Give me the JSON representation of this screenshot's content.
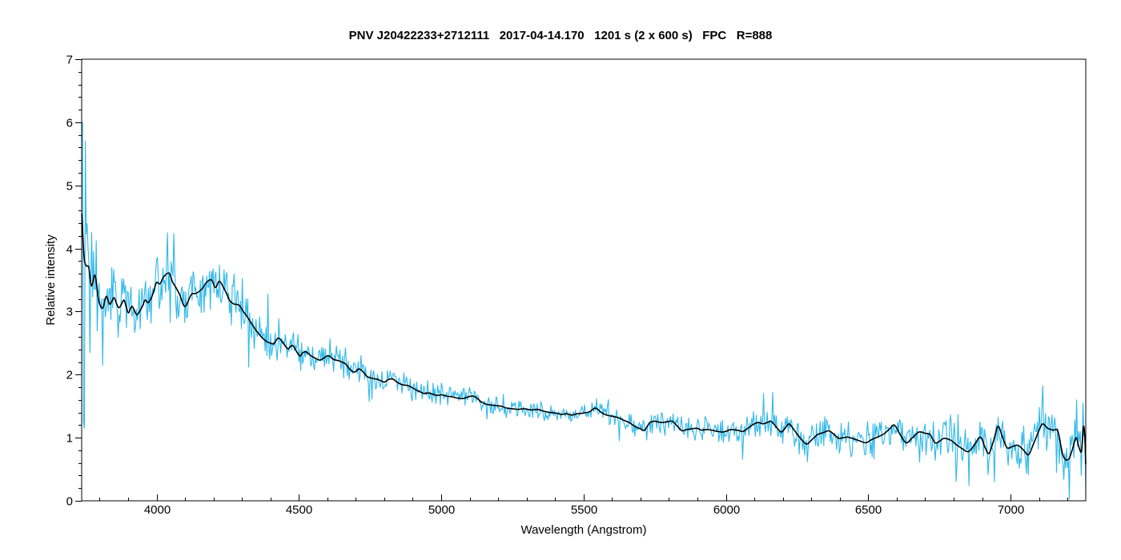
{
  "page": {
    "background": "#ffffff"
  },
  "chart_data": {
    "type": "line",
    "title": "PNV J20422233+2712111   2017-04-14.170   1201 s (2 x 600 s)   FPC   R=888",
    "xlabel": "Wavelength (Angstrom)",
    "ylabel": "Relative intensity",
    "xlim": [
      3737,
      7264
    ],
    "ylim": [
      0,
      7
    ],
    "x_major_ticks": [
      4000,
      4500,
      5000,
      5500,
      6000,
      6500,
      7000
    ],
    "x_minor_step": 100,
    "y_major_ticks": [
      0,
      1,
      2,
      3,
      4,
      5,
      6,
      7
    ],
    "y_minor_step": 0.2,
    "grid": false,
    "legend": "none",
    "colors": {
      "raw": "#2fb8ec",
      "smoothed": "#000000",
      "axis": "#000000",
      "background": "#ffffff"
    },
    "noise_seed": 20170414,
    "raw_sample_count": 1100,
    "noise_envelope": [
      [
        3737,
        1.3
      ],
      [
        3745,
        1.05
      ],
      [
        3755,
        0.75
      ],
      [
        3770,
        0.6
      ],
      [
        3800,
        0.55
      ],
      [
        3850,
        0.5
      ],
      [
        3900,
        0.48
      ],
      [
        3950,
        0.45
      ],
      [
        4000,
        0.42
      ],
      [
        4100,
        0.42
      ],
      [
        4200,
        0.42
      ],
      [
        4300,
        0.38
      ],
      [
        4400,
        0.3
      ],
      [
        4500,
        0.26
      ],
      [
        4600,
        0.24
      ],
      [
        4700,
        0.2
      ],
      [
        4800,
        0.18
      ],
      [
        4900,
        0.18
      ],
      [
        5000,
        0.16
      ],
      [
        5100,
        0.16
      ],
      [
        5200,
        0.14
      ],
      [
        5300,
        0.14
      ],
      [
        5400,
        0.13
      ],
      [
        5500,
        0.13
      ],
      [
        5600,
        0.16
      ],
      [
        5700,
        0.18
      ],
      [
        5800,
        0.2
      ],
      [
        5900,
        0.2
      ],
      [
        6000,
        0.2
      ],
      [
        6100,
        0.22
      ],
      [
        6200,
        0.24
      ],
      [
        6300,
        0.24
      ],
      [
        6400,
        0.26
      ],
      [
        6500,
        0.28
      ],
      [
        6600,
        0.28
      ],
      [
        6700,
        0.3
      ],
      [
        6800,
        0.32
      ],
      [
        6900,
        0.33
      ],
      [
        7000,
        0.33
      ],
      [
        7100,
        0.36
      ],
      [
        7150,
        0.38
      ],
      [
        7200,
        0.4
      ],
      [
        7230,
        0.45
      ],
      [
        7250,
        0.4
      ],
      [
        7264,
        0.35
      ]
    ],
    "spikes": [
      [
        3739,
        6.0
      ],
      [
        3742,
        1.25
      ],
      [
        3748,
        1.15
      ],
      [
        3751,
        5.7
      ],
      [
        3765,
        2.35
      ],
      [
        3789,
        4.12
      ],
      [
        3810,
        2.15
      ],
      [
        4040,
        4.25
      ],
      [
        4325,
        2.12
      ],
      [
        4390,
        3.28
      ],
      [
        5545,
        1.62
      ],
      [
        6165,
        1.72
      ],
      [
        6285,
        0.62
      ],
      [
        6942,
        0.3
      ],
      [
        7112,
        1.82
      ],
      [
        7160,
        0.45
      ],
      [
        7232,
        1.6
      ],
      [
        7253,
        1.55
      ],
      [
        7263,
        0.14
      ]
    ],
    "series": [
      {
        "name": "raw spectrum",
        "color": "#2fb8ec",
        "derived": "smoothed points + noise_envelope + spikes"
      },
      {
        "name": "smoothed spectrum",
        "color": "#000000",
        "points": [
          [
            3737,
            4.55
          ],
          [
            3740,
            4.3
          ],
          [
            3744,
            3.95
          ],
          [
            3748,
            3.78
          ],
          [
            3754,
            3.72
          ],
          [
            3762,
            3.7
          ],
          [
            3770,
            3.42
          ],
          [
            3776,
            3.46
          ],
          [
            3782,
            3.58
          ],
          [
            3788,
            3.48
          ],
          [
            3795,
            3.22
          ],
          [
            3802,
            3.1
          ],
          [
            3812,
            3.06
          ],
          [
            3823,
            3.24
          ],
          [
            3835,
            3.12
          ],
          [
            3843,
            3.16
          ],
          [
            3851,
            3.22
          ],
          [
            3860,
            3.12
          ],
          [
            3868,
            3.06
          ],
          [
            3877,
            3.12
          ],
          [
            3886,
            3.18
          ],
          [
            3895,
            3.05
          ],
          [
            3902,
            2.98
          ],
          [
            3912,
            3.08
          ],
          [
            3920,
            3.04
          ],
          [
            3930,
            2.95
          ],
          [
            3940,
            3.0
          ],
          [
            3950,
            3.08
          ],
          [
            3960,
            3.18
          ],
          [
            3970,
            3.14
          ],
          [
            3980,
            3.2
          ],
          [
            3990,
            3.32
          ],
          [
            4000,
            3.46
          ],
          [
            4012,
            3.44
          ],
          [
            4025,
            3.55
          ],
          [
            4044,
            3.61
          ],
          [
            4056,
            3.47
          ],
          [
            4067,
            3.39
          ],
          [
            4082,
            3.26
          ],
          [
            4100,
            3.08
          ],
          [
            4122,
            3.27
          ],
          [
            4140,
            3.29
          ],
          [
            4160,
            3.36
          ],
          [
            4175,
            3.46
          ],
          [
            4193,
            3.5
          ],
          [
            4207,
            3.38
          ],
          [
            4221,
            3.48
          ],
          [
            4240,
            3.34
          ],
          [
            4258,
            3.17
          ],
          [
            4272,
            3.12
          ],
          [
            4290,
            3.1
          ],
          [
            4305,
            3.0
          ],
          [
            4318,
            2.92
          ],
          [
            4332,
            2.82
          ],
          [
            4350,
            2.7
          ],
          [
            4368,
            2.6
          ],
          [
            4385,
            2.53
          ],
          [
            4400,
            2.5
          ],
          [
            4412,
            2.49
          ],
          [
            4428,
            2.58
          ],
          [
            4448,
            2.48
          ],
          [
            4462,
            2.41
          ],
          [
            4478,
            2.46
          ],
          [
            4502,
            2.3
          ],
          [
            4514,
            2.35
          ],
          [
            4526,
            2.36
          ],
          [
            4542,
            2.3
          ],
          [
            4558,
            2.26
          ],
          [
            4574,
            2.23
          ],
          [
            4590,
            2.27
          ],
          [
            4604,
            2.3
          ],
          [
            4622,
            2.24
          ],
          [
            4640,
            2.22
          ],
          [
            4650,
            2.2
          ],
          [
            4664,
            2.17
          ],
          [
            4680,
            2.08
          ],
          [
            4695,
            2.04
          ],
          [
            4710,
            2.09
          ],
          [
            4722,
            2.06
          ],
          [
            4740,
            1.97
          ],
          [
            4760,
            1.94
          ],
          [
            4780,
            1.92
          ],
          [
            4800,
            1.88
          ],
          [
            4813,
            1.92
          ],
          [
            4830,
            1.93
          ],
          [
            4845,
            1.88
          ],
          [
            4862,
            1.84
          ],
          [
            4880,
            1.83
          ],
          [
            4896,
            1.8
          ],
          [
            4910,
            1.76
          ],
          [
            4925,
            1.73
          ],
          [
            4940,
            1.7
          ],
          [
            4955,
            1.71
          ],
          [
            4970,
            1.69
          ],
          [
            4985,
            1.67
          ],
          [
            5000,
            1.68
          ],
          [
            5018,
            1.66
          ],
          [
            5035,
            1.65
          ],
          [
            5055,
            1.63
          ],
          [
            5075,
            1.62
          ],
          [
            5090,
            1.64
          ],
          [
            5108,
            1.66
          ],
          [
            5122,
            1.64
          ],
          [
            5140,
            1.57
          ],
          [
            5158,
            1.53
          ],
          [
            5172,
            1.52
          ],
          [
            5190,
            1.51
          ],
          [
            5210,
            1.5
          ],
          [
            5230,
            1.47
          ],
          [
            5250,
            1.46
          ],
          [
            5270,
            1.45
          ],
          [
            5292,
            1.46
          ],
          [
            5315,
            1.44
          ],
          [
            5338,
            1.45
          ],
          [
            5360,
            1.42
          ],
          [
            5382,
            1.4
          ],
          [
            5402,
            1.39
          ],
          [
            5422,
            1.37
          ],
          [
            5440,
            1.38
          ],
          [
            5458,
            1.36
          ],
          [
            5478,
            1.38
          ],
          [
            5498,
            1.39
          ],
          [
            5520,
            1.41
          ],
          [
            5542,
            1.47
          ],
          [
            5562,
            1.4
          ],
          [
            5580,
            1.36
          ],
          [
            5600,
            1.34
          ],
          [
            5620,
            1.32
          ],
          [
            5640,
            1.28
          ],
          [
            5660,
            1.24
          ],
          [
            5680,
            1.18
          ],
          [
            5700,
            1.14
          ],
          [
            5714,
            1.12
          ],
          [
            5733,
            1.24
          ],
          [
            5752,
            1.26
          ],
          [
            5772,
            1.24
          ],
          [
            5792,
            1.25
          ],
          [
            5812,
            1.26
          ],
          [
            5830,
            1.18
          ],
          [
            5846,
            1.11
          ],
          [
            5862,
            1.13
          ],
          [
            5880,
            1.14
          ],
          [
            5898,
            1.15
          ],
          [
            5915,
            1.12
          ],
          [
            5932,
            1.13
          ],
          [
            5950,
            1.12
          ],
          [
            5970,
            1.1
          ],
          [
            5990,
            1.09
          ],
          [
            6005,
            1.11
          ],
          [
            6018,
            1.13
          ],
          [
            6040,
            1.12
          ],
          [
            6060,
            1.1
          ],
          [
            6080,
            1.16
          ],
          [
            6100,
            1.22
          ],
          [
            6115,
            1.24
          ],
          [
            6130,
            1.22
          ],
          [
            6145,
            1.24
          ],
          [
            6158,
            1.26
          ],
          [
            6175,
            1.18
          ],
          [
            6194,
            1.09
          ],
          [
            6208,
            1.15
          ],
          [
            6222,
            1.22
          ],
          [
            6240,
            1.12
          ],
          [
            6260,
            1.0
          ],
          [
            6283,
            0.9
          ],
          [
            6300,
            0.96
          ],
          [
            6322,
            1.05
          ],
          [
            6342,
            1.08
          ],
          [
            6362,
            1.11
          ],
          [
            6380,
            1.05
          ],
          [
            6396,
            0.99
          ],
          [
            6412,
            1.0
          ],
          [
            6428,
            1.01
          ],
          [
            6450,
            0.98
          ],
          [
            6470,
            0.95
          ],
          [
            6492,
            0.92
          ],
          [
            6512,
            0.97
          ],
          [
            6532,
            1.01
          ],
          [
            6555,
            1.06
          ],
          [
            6575,
            1.14
          ],
          [
            6592,
            1.2
          ],
          [
            6612,
            1.05
          ],
          [
            6633,
            0.92
          ],
          [
            6655,
            1.0
          ],
          [
            6678,
            1.09
          ],
          [
            6700,
            1.07
          ],
          [
            6717,
            1.05
          ],
          [
            6735,
            0.92
          ],
          [
            6752,
            0.95
          ],
          [
            6766,
            0.99
          ],
          [
            6790,
            0.96
          ],
          [
            6812,
            0.88
          ],
          [
            6832,
            0.82
          ],
          [
            6852,
            0.78
          ],
          [
            6872,
            0.88
          ],
          [
            6894,
            1.01
          ],
          [
            6910,
            0.85
          ],
          [
            6924,
            0.75
          ],
          [
            6940,
            0.95
          ],
          [
            6956,
            1.18
          ],
          [
            6972,
            1.0
          ],
          [
            6988,
            0.84
          ],
          [
            7006,
            0.86
          ],
          [
            7026,
            0.88
          ],
          [
            7046,
            0.8
          ],
          [
            7063,
            0.73
          ],
          [
            7080,
            0.9
          ],
          [
            7092,
            1.03
          ],
          [
            7100,
            1.12
          ],
          [
            7113,
            1.22
          ],
          [
            7130,
            1.15
          ],
          [
            7150,
            1.12
          ],
          [
            7166,
            1.1
          ],
          [
            7184,
            0.72
          ],
          [
            7202,
            0.65
          ],
          [
            7216,
            0.8
          ],
          [
            7230,
            1.0
          ],
          [
            7240,
            0.85
          ],
          [
            7249,
            0.79
          ],
          [
            7256,
            1.18
          ],
          [
            7261,
            0.98
          ],
          [
            7264,
            0.58
          ]
        ]
      }
    ]
  }
}
